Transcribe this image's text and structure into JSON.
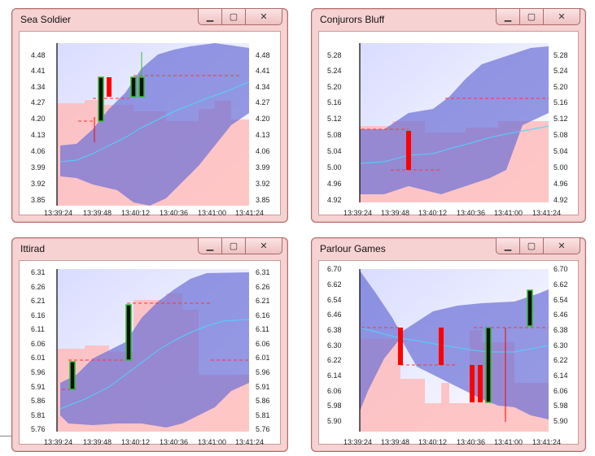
{
  "windows": [
    {
      "title": "Sea Soldier",
      "y_ticks": [
        "4.48",
        "4.41",
        "4.34",
        "4.27",
        "4.20",
        "4.13",
        "4.06",
        "3.99",
        "3.92",
        "3.85"
      ],
      "x_ticks": [
        "13:39:24",
        "13:39:48",
        "13:40:12",
        "13:40:36",
        "13:41:00",
        "13:41:24"
      ]
    },
    {
      "title": "Conjurors Bluff",
      "y_ticks": [
        "5.28",
        "5.24",
        "5.20",
        "5.16",
        "5.12",
        "5.08",
        "5.04",
        "5.00",
        "4.96",
        "4.92"
      ],
      "x_ticks": [
        "13:39:24",
        "13:39:48",
        "13:40:12",
        "13:40:36",
        "13:41:00",
        "13:41:24"
      ]
    },
    {
      "title": "Ittirad",
      "y_ticks": [
        "6.31",
        "6.26",
        "6.21",
        "6.16",
        "6.11",
        "6.06",
        "6.01",
        "5.96",
        "5.91",
        "5.86",
        "5.81",
        "5.76"
      ],
      "x_ticks": [
        "13:39:24",
        "13:39:48",
        "13:40:12",
        "13:40:36",
        "13:41:00",
        "13:41:24"
      ]
    },
    {
      "title": "Parlour Games",
      "y_ticks": [
        "6.70",
        "6.62",
        "6.54",
        "6.46",
        "6.38",
        "6.30",
        "6.22",
        "6.14",
        "6.06",
        "5.98",
        "5.90"
      ],
      "x_ticks": [
        "13:39:24",
        "13:39:48",
        "13:40:12",
        "13:40:36",
        "13:41:00",
        "13:41:24"
      ]
    }
  ],
  "controls": {
    "min": "▭",
    "max": "▢",
    "close": "✕"
  },
  "colors": {
    "up": "#111111",
    "up_border": "#2fbf2f",
    "down": "#ff0000",
    "band": "#7b7fd6",
    "mid": "#4fd3ff",
    "grid": "#ff3333"
  }
}
